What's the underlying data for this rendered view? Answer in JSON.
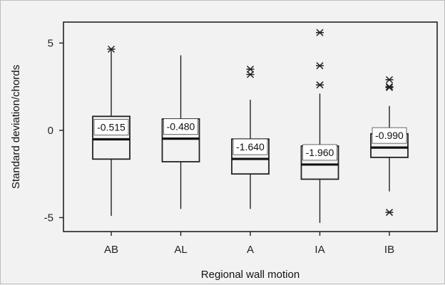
{
  "chart_data": {
    "type": "boxplot",
    "xlabel": "Regional wall motion",
    "ylabel": "Standard deviation/chords",
    "ylim": [
      -5.8,
      6.2
    ],
    "yticks": [
      -5,
      0,
      5
    ],
    "ytick_labels": [
      "-5",
      "0",
      "5"
    ],
    "categories": [
      "AB",
      "AL",
      "A",
      "IA",
      "IB"
    ],
    "boxes": [
      {
        "category": "AB",
        "whisker_low": -4.9,
        "q1": -1.65,
        "median": -0.515,
        "q3": 0.8,
        "whisker_high": 4.6,
        "outliers": [
          4.65
        ],
        "median_label": "-0.515"
      },
      {
        "category": "AL",
        "whisker_low": -4.5,
        "q1": -1.8,
        "median": -0.48,
        "q3": 0.65,
        "whisker_high": 4.3,
        "outliers": [],
        "median_label": "-0.480"
      },
      {
        "category": "A",
        "whisker_low": -4.5,
        "q1": -2.5,
        "median": -1.64,
        "q3": -0.5,
        "whisker_high": 1.75,
        "outliers": [
          3.2,
          3.5
        ],
        "median_label": "-1.640"
      },
      {
        "category": "IA",
        "whisker_low": -5.3,
        "q1": -2.8,
        "median": -1.96,
        "q3": -0.9,
        "whisker_high": 2.1,
        "outliers": [
          2.6,
          3.7,
          5.6
        ],
        "median_label": "-1.960"
      },
      {
        "category": "IB",
        "whisker_low": -3.5,
        "q1": -1.55,
        "median": -0.99,
        "q3": -0.2,
        "whisker_high": 1.4,
        "outliers": [
          -4.7,
          2.45,
          2.5,
          2.9
        ],
        "median_label": "-0.990"
      }
    ]
  }
}
